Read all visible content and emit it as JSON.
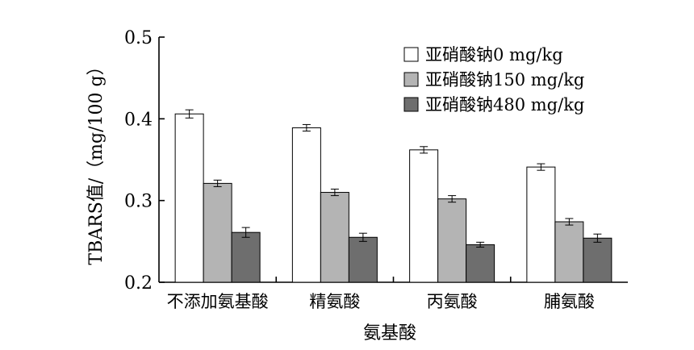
{
  "chart_data": {
    "type": "bar",
    "xlabel": "氨基酸",
    "ylabel": "TBARS值/（mg/100 g）",
    "ylim": [
      0.2,
      0.5
    ],
    "yticks": [
      "0.2",
      "0.3",
      "0.4",
      "0.5"
    ],
    "categories": [
      "不添加氨基酸",
      "精氨酸",
      "丙氨酸",
      "脯氨酸"
    ],
    "series": [
      {
        "name": "亚硝酸钠0 mg/kg",
        "color": "#ffffff",
        "values": [
          0.406,
          0.389,
          0.362,
          0.341
        ],
        "errors": [
          0.005,
          0.004,
          0.004,
          0.004
        ]
      },
      {
        "name": "亚硝酸钠150 mg/kg",
        "color": "#b4b4b4",
        "values": [
          0.321,
          0.31,
          0.302,
          0.274
        ],
        "errors": [
          0.004,
          0.004,
          0.004,
          0.004
        ]
      },
      {
        "name": "亚硝酸钠480 mg/kg",
        "color": "#6e6e6e",
        "values": [
          0.261,
          0.255,
          0.246,
          0.254
        ],
        "errors": [
          0.006,
          0.005,
          0.003,
          0.005
        ]
      }
    ],
    "legend_position": "top-right",
    "grid": false
  }
}
